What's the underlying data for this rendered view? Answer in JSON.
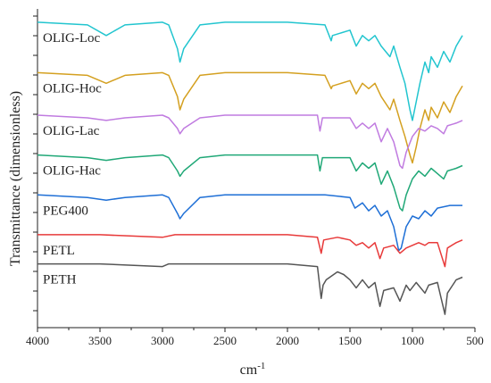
{
  "chart_data": {
    "type": "line",
    "xlabel": "cm",
    "xlabel_sup": "-1",
    "ylabel": "Transmittance (dimensionless)",
    "xlim": [
      4000,
      500
    ],
    "x_ticks": [
      4000,
      3500,
      3000,
      2500,
      2000,
      1500,
      1000,
      500
    ],
    "y_scale": "offset stacked spectra, no numeric ticks",
    "grid": false,
    "legend": "none",
    "series": [
      {
        "name": "OLIG-Loc",
        "color": "#22c5cf",
        "baseline": 0.95,
        "points": [
          [
            4000,
            0.95
          ],
          [
            3600,
            0.94
          ],
          [
            3450,
            0.9
          ],
          [
            3300,
            0.94
          ],
          [
            3000,
            0.95
          ],
          [
            2950,
            0.94
          ],
          [
            2880,
            0.85
          ],
          [
            2860,
            0.8
          ],
          [
            2830,
            0.85
          ],
          [
            2700,
            0.94
          ],
          [
            2500,
            0.95
          ],
          [
            2000,
            0.95
          ],
          [
            1700,
            0.94
          ],
          [
            1650,
            0.88
          ],
          [
            1640,
            0.9
          ],
          [
            1500,
            0.92
          ],
          [
            1450,
            0.86
          ],
          [
            1400,
            0.9
          ],
          [
            1350,
            0.88
          ],
          [
            1300,
            0.9
          ],
          [
            1250,
            0.86
          ],
          [
            1180,
            0.82
          ],
          [
            1150,
            0.86
          ],
          [
            1100,
            0.78
          ],
          [
            1060,
            0.72
          ],
          [
            1020,
            0.62
          ],
          [
            1000,
            0.58
          ],
          [
            970,
            0.65
          ],
          [
            940,
            0.72
          ],
          [
            900,
            0.8
          ],
          [
            870,
            0.76
          ],
          [
            850,
            0.82
          ],
          [
            800,
            0.78
          ],
          [
            750,
            0.84
          ],
          [
            700,
            0.8
          ],
          [
            650,
            0.86
          ],
          [
            600,
            0.9
          ]
        ]
      },
      {
        "name": "OLIG-Hoc",
        "color": "#d4a020",
        "baseline": 0.76,
        "points": [
          [
            4000,
            0.76
          ],
          [
            3600,
            0.75
          ],
          [
            3450,
            0.72
          ],
          [
            3300,
            0.75
          ],
          [
            3000,
            0.76
          ],
          [
            2950,
            0.75
          ],
          [
            2880,
            0.67
          ],
          [
            2860,
            0.62
          ],
          [
            2830,
            0.66
          ],
          [
            2700,
            0.75
          ],
          [
            2500,
            0.76
          ],
          [
            2000,
            0.76
          ],
          [
            1700,
            0.75
          ],
          [
            1650,
            0.7
          ],
          [
            1640,
            0.71
          ],
          [
            1500,
            0.73
          ],
          [
            1450,
            0.68
          ],
          [
            1400,
            0.72
          ],
          [
            1350,
            0.7
          ],
          [
            1300,
            0.72
          ],
          [
            1250,
            0.67
          ],
          [
            1180,
            0.62
          ],
          [
            1150,
            0.66
          ],
          [
            1100,
            0.58
          ],
          [
            1060,
            0.52
          ],
          [
            1020,
            0.45
          ],
          [
            1000,
            0.42
          ],
          [
            970,
            0.48
          ],
          [
            940,
            0.55
          ],
          [
            900,
            0.62
          ],
          [
            870,
            0.58
          ],
          [
            850,
            0.63
          ],
          [
            800,
            0.59
          ],
          [
            750,
            0.65
          ],
          [
            700,
            0.61
          ],
          [
            650,
            0.67
          ],
          [
            600,
            0.71
          ]
        ]
      },
      {
        "name": "OLIG-Lac",
        "color": "#c07be0",
        "baseline": 0.6,
        "points": [
          [
            4000,
            0.6
          ],
          [
            3600,
            0.59
          ],
          [
            3450,
            0.58
          ],
          [
            3300,
            0.59
          ],
          [
            3000,
            0.6
          ],
          [
            2950,
            0.59
          ],
          [
            2880,
            0.55
          ],
          [
            2860,
            0.53
          ],
          [
            2830,
            0.55
          ],
          [
            2700,
            0.59
          ],
          [
            2500,
            0.6
          ],
          [
            2000,
            0.6
          ],
          [
            1760,
            0.6
          ],
          [
            1740,
            0.54
          ],
          [
            1720,
            0.59
          ],
          [
            1500,
            0.59
          ],
          [
            1450,
            0.55
          ],
          [
            1400,
            0.57
          ],
          [
            1350,
            0.55
          ],
          [
            1300,
            0.57
          ],
          [
            1250,
            0.5
          ],
          [
            1200,
            0.55
          ],
          [
            1150,
            0.5
          ],
          [
            1100,
            0.41
          ],
          [
            1080,
            0.4
          ],
          [
            1050,
            0.46
          ],
          [
            1000,
            0.52
          ],
          [
            950,
            0.55
          ],
          [
            900,
            0.54
          ],
          [
            850,
            0.56
          ],
          [
            800,
            0.55
          ],
          [
            750,
            0.53
          ],
          [
            720,
            0.56
          ],
          [
            650,
            0.57
          ],
          [
            600,
            0.58
          ]
        ]
      },
      {
        "name": "OLIG-Hac",
        "color": "#20a877",
        "baseline": 0.45,
        "points": [
          [
            4000,
            0.45
          ],
          [
            3600,
            0.44
          ],
          [
            3450,
            0.43
          ],
          [
            3300,
            0.44
          ],
          [
            3000,
            0.45
          ],
          [
            2950,
            0.44
          ],
          [
            2880,
            0.39
          ],
          [
            2860,
            0.37
          ],
          [
            2830,
            0.39
          ],
          [
            2700,
            0.44
          ],
          [
            2500,
            0.45
          ],
          [
            2000,
            0.45
          ],
          [
            1760,
            0.45
          ],
          [
            1740,
            0.39
          ],
          [
            1720,
            0.44
          ],
          [
            1500,
            0.44
          ],
          [
            1450,
            0.39
          ],
          [
            1400,
            0.42
          ],
          [
            1350,
            0.4
          ],
          [
            1300,
            0.42
          ],
          [
            1250,
            0.34
          ],
          [
            1200,
            0.39
          ],
          [
            1150,
            0.33
          ],
          [
            1100,
            0.25
          ],
          [
            1080,
            0.24
          ],
          [
            1050,
            0.3
          ],
          [
            1000,
            0.36
          ],
          [
            950,
            0.39
          ],
          [
            900,
            0.37
          ],
          [
            850,
            0.4
          ],
          [
            800,
            0.38
          ],
          [
            750,
            0.36
          ],
          [
            720,
            0.39
          ],
          [
            650,
            0.4
          ],
          [
            600,
            0.41
          ]
        ]
      },
      {
        "name": "PEG400",
        "color": "#1e6fd6",
        "baseline": 0.3,
        "points": [
          [
            4000,
            0.3
          ],
          [
            3600,
            0.29
          ],
          [
            3450,
            0.28
          ],
          [
            3300,
            0.29
          ],
          [
            3000,
            0.3
          ],
          [
            2950,
            0.29
          ],
          [
            2880,
            0.23
          ],
          [
            2860,
            0.21
          ],
          [
            2830,
            0.23
          ],
          [
            2700,
            0.29
          ],
          [
            2500,
            0.3
          ],
          [
            2000,
            0.3
          ],
          [
            1700,
            0.3
          ],
          [
            1500,
            0.29
          ],
          [
            1460,
            0.25
          ],
          [
            1400,
            0.27
          ],
          [
            1350,
            0.24
          ],
          [
            1300,
            0.26
          ],
          [
            1250,
            0.22
          ],
          [
            1200,
            0.24
          ],
          [
            1150,
            0.18
          ],
          [
            1110,
            0.09
          ],
          [
            1090,
            0.1
          ],
          [
            1050,
            0.18
          ],
          [
            1000,
            0.22
          ],
          [
            950,
            0.21
          ],
          [
            900,
            0.24
          ],
          [
            850,
            0.22
          ],
          [
            800,
            0.25
          ],
          [
            700,
            0.26
          ],
          [
            600,
            0.26
          ]
        ]
      },
      {
        "name": "PETL",
        "color": "#e83a3a",
        "baseline": 0.15,
        "points": [
          [
            4000,
            0.15
          ],
          [
            3500,
            0.15
          ],
          [
            3000,
            0.14
          ],
          [
            2900,
            0.15
          ],
          [
            2000,
            0.15
          ],
          [
            1760,
            0.14
          ],
          [
            1730,
            0.08
          ],
          [
            1710,
            0.13
          ],
          [
            1600,
            0.14
          ],
          [
            1500,
            0.13
          ],
          [
            1450,
            0.11
          ],
          [
            1400,
            0.12
          ],
          [
            1350,
            0.1
          ],
          [
            1300,
            0.12
          ],
          [
            1260,
            0.06
          ],
          [
            1230,
            0.1
          ],
          [
            1150,
            0.11
          ],
          [
            1100,
            0.08
          ],
          [
            1050,
            0.1
          ],
          [
            1000,
            0.11
          ],
          [
            950,
            0.12
          ],
          [
            900,
            0.11
          ],
          [
            870,
            0.12
          ],
          [
            800,
            0.12
          ],
          [
            740,
            0.03
          ],
          [
            720,
            0.1
          ],
          [
            650,
            0.12
          ],
          [
            600,
            0.13
          ]
        ]
      },
      {
        "name": "PETH",
        "color": "#555555",
        "baseline": 0.04,
        "points": [
          [
            4000,
            0.04
          ],
          [
            3500,
            0.04
          ],
          [
            3000,
            0.03
          ],
          [
            2950,
            0.04
          ],
          [
            2000,
            0.04
          ],
          [
            1760,
            0.03
          ],
          [
            1730,
            -0.09
          ],
          [
            1715,
            -0.04
          ],
          [
            1690,
            -0.02
          ],
          [
            1600,
            0.01
          ],
          [
            1550,
            0.0
          ],
          [
            1500,
            -0.02
          ],
          [
            1450,
            -0.05
          ],
          [
            1400,
            -0.02
          ],
          [
            1350,
            -0.05
          ],
          [
            1300,
            -0.03
          ],
          [
            1260,
            -0.12
          ],
          [
            1230,
            -0.06
          ],
          [
            1150,
            -0.05
          ],
          [
            1100,
            -0.1
          ],
          [
            1050,
            -0.04
          ],
          [
            1020,
            -0.06
          ],
          [
            970,
            -0.03
          ],
          [
            900,
            -0.07
          ],
          [
            870,
            -0.04
          ],
          [
            800,
            -0.03
          ],
          [
            740,
            -0.15
          ],
          [
            720,
            -0.07
          ],
          [
            650,
            -0.02
          ],
          [
            600,
            -0.01
          ]
        ]
      }
    ]
  }
}
